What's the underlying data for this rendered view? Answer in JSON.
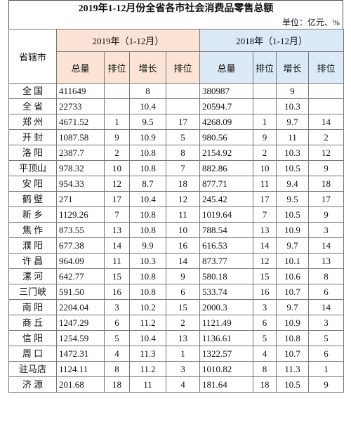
{
  "header": {
    "title": "2019年1-12月份全省各市社会消费品零售总额",
    "unit": "单位：亿元、%"
  },
  "table": {
    "corner": "省辖市",
    "groups": [
      "2019年（1-12月）",
      "2018年（1-12月）"
    ],
    "columns": [
      "总量",
      "排位",
      "增长",
      "排位",
      "总量",
      "排位",
      "增长",
      "排位"
    ],
    "rows": [
      [
        "全 国",
        "411649",
        null,
        "8",
        null,
        "380987",
        null,
        "9",
        null
      ],
      [
        "全 省",
        "22733",
        null,
        "10.4",
        null,
        "20594.7",
        null,
        "10.3",
        null
      ],
      [
        "郑 州",
        "4671.52",
        "1",
        "9.5",
        "17",
        "4268.09",
        "1",
        "9.7",
        "14"
      ],
      [
        "开 封",
        "1087.58",
        "9",
        "10.9",
        "5",
        "980.56",
        "9",
        "11",
        "2"
      ],
      [
        "洛 阳",
        "2387.7",
        "2",
        "10.8",
        "8",
        "2154.92",
        "2",
        "10.3",
        "12"
      ],
      [
        "平顶山",
        "978.32",
        "10",
        "10.8",
        "7",
        "882.86",
        "10",
        "10.5",
        "9"
      ],
      [
        "安 阳",
        "954.33",
        "12",
        "8.7",
        "18",
        "877.71",
        "11",
        "9.4",
        "18"
      ],
      [
        "鹤 壁",
        "271",
        "17",
        "10.4",
        "12",
        "245.42",
        "17",
        "9.5",
        "17"
      ],
      [
        "新 乡",
        "1129.26",
        "7",
        "10.8",
        "11",
        "1019.64",
        "7",
        "10.5",
        "9"
      ],
      [
        "焦 作",
        "873.55",
        "13",
        "10.8",
        "10",
        "788.54",
        "13",
        "10.9",
        "3"
      ],
      [
        "濮 阳",
        "677.38",
        "14",
        "9.9",
        "16",
        "616.53",
        "14",
        "9.7",
        "14"
      ],
      [
        "许 昌",
        "964.09",
        "11",
        "10.3",
        "14",
        "873.77",
        "12",
        "10.1",
        "13"
      ],
      [
        "漯 河",
        "642.77",
        "15",
        "10.8",
        "9",
        "580.18",
        "15",
        "10.6",
        "8"
      ],
      [
        "三门峡",
        "591.50",
        "16",
        "10.8",
        "6",
        "533.74",
        "16",
        "10.7",
        "6"
      ],
      [
        "南 阳",
        "2204.04",
        "3",
        "10.2",
        "15",
        "2000.3",
        "3",
        "9.7",
        "14"
      ],
      [
        "商 丘",
        "1247.29",
        "6",
        "11.2",
        "2",
        "1121.49",
        "6",
        "10.9",
        "3"
      ],
      [
        "信 阳",
        "1254.59",
        "5",
        "10.4",
        "13",
        "1136.61",
        "5",
        "10.8",
        "5"
      ],
      [
        "周 口",
        "1472.31",
        "4",
        "11.3",
        "1",
        "1322.57",
        "4",
        "10.7",
        "6"
      ],
      [
        "驻马店",
        "1124.11",
        "8",
        "11.2",
        "3",
        "1010.82",
        "8",
        "11.3",
        "1"
      ],
      [
        "济 源",
        "201.68",
        "18",
        "11",
        "4",
        "181.64",
        "18",
        "10.5",
        "9"
      ]
    ]
  }
}
